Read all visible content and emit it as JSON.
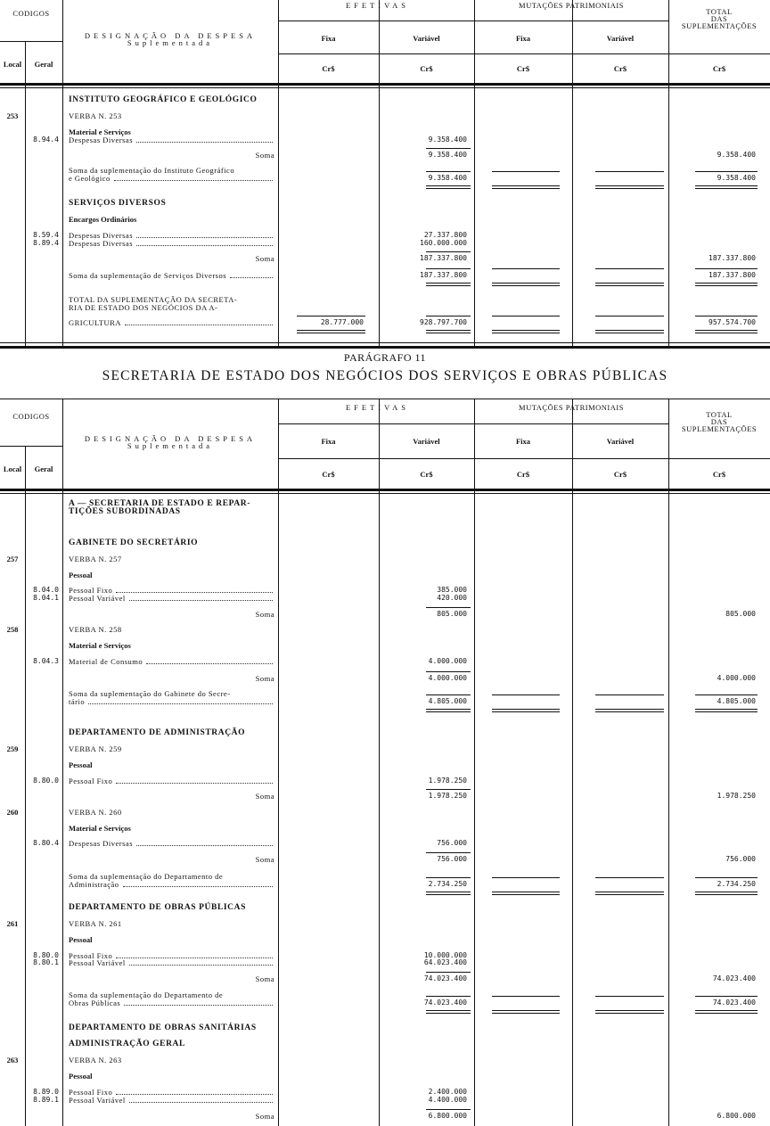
{
  "tables": [
    {
      "header": {
        "codigos": "CODIGOS",
        "local": "Local",
        "geral": "Geral",
        "designacao": [
          "DESIGNAÇÃO DA DESPESA",
          "Suplementada"
        ],
        "efetivas": "EFETIVAS",
        "efetivas_fixa": "Fixa",
        "efetivas_variavel": "Variável",
        "mutacoes": "MUTAÇÕES PATRIMONIAIS",
        "mutacoes_fixa": "Fixa",
        "mutacoes_variavel": "Variável",
        "total": [
          "TOTAL",
          "DAS",
          "SUPLEMENTAÇÕES"
        ],
        "currency": [
          "Cr$",
          "Cr$",
          "Cr$",
          "Cr$",
          "Cr$"
        ]
      },
      "rows": [
        {
          "desc": [
            "INSTITUTO GEOGRÁFICO E GEOLÓGICO"
          ]
        },
        {
          "local": "253",
          "desc": [
            "VERBA N. 253"
          ]
        },
        {
          "desc": [
            "Material e Serviços"
          ]
        },
        {
          "geral": "8.94.4",
          "desc": [
            "Despesas Diversas"
          ],
          "variavel": "9.358.400"
        },
        {
          "desc": [
            "Soma"
          ],
          "variavel": "9.358.400",
          "total": "9.358.400"
        },
        {
          "desc": [
            "Soma da suplementação do Instituto Geográfico",
            "e Geológico"
          ],
          "variavel": "9.358.400",
          "total": "9.358.400"
        },
        {
          "desc": [
            "SERVIÇOS DIVERSOS"
          ]
        },
        {
          "desc": [
            "Encargos Ordinários"
          ]
        },
        {
          "geral": "8.59.4",
          "desc": [
            "Despesas Diversas"
          ],
          "variavel": "27.337.800"
        },
        {
          "geral": "8.89.4",
          "desc": [
            "Despesas Diversas"
          ],
          "variavel": "160.000.000"
        },
        {
          "desc": [
            "Soma"
          ],
          "variavel": "187.337.800",
          "total": "187.337.800"
        },
        {
          "desc": [
            "Soma da suplementação de Serviços Diversos"
          ],
          "variavel": "187.337.800",
          "total": "187.337.800"
        },
        {
          "desc": [
            "TOTAL DA SUPLEMENTAÇÃO DA SECRETA-",
            "RIA DE ESTADO DOS NEGÓCIOS DA A-",
            "GRICULTURA"
          ],
          "fixa": "28.777.000",
          "variavel": "928.797.700",
          "total": "957.574.700"
        }
      ]
    },
    {
      "header": {
        "codigos": "CODIGOS",
        "local": "Local",
        "geral": "Geral",
        "designacao": [
          "DESIGNAÇÃO DA DESPESA",
          "Suplementada"
        ],
        "efetivas": "EFETIVAS",
        "efetivas_fixa": "Fixa",
        "efetivas_variavel": "Variável",
        "mutacoes": "MUTAÇÕES PATRIMONIAIS",
        "mutacoes_fixa": "Fixa",
        "mutacoes_variavel": "Variável",
        "total": [
          "TOTAL",
          "DAS",
          "SUPLEMENTAÇÕES"
        ],
        "currency": [
          "Cr$",
          "Cr$",
          "Cr$",
          "Cr$",
          "Cr$"
        ]
      },
      "rows": [
        {
          "desc": [
            "A — SECRETARIA DE ESTADO E REPAR-",
            "TIÇÕES SUBORDINADAS"
          ]
        },
        {
          "desc": [
            "GABINETE DO SECRETÁRIO"
          ]
        },
        {
          "local": "257",
          "desc": [
            "VERBA N. 257"
          ]
        },
        {
          "desc": [
            "Pessoal"
          ]
        },
        {
          "geral": "8.04.0",
          "desc": [
            "Pessoal Fixo"
          ],
          "variavel": "385.000"
        },
        {
          "geral": "8.04.1",
          "desc": [
            "Pessoal Variável"
          ],
          "variavel": "420.000"
        },
        {
          "desc": [
            "Soma"
          ],
          "variavel": "805.000",
          "total": "805.000"
        },
        {
          "local": "258",
          "desc": [
            "VERBA N. 258"
          ]
        },
        {
          "desc": [
            "Material e Serviços"
          ]
        },
        {
          "geral": "8.04.3",
          "desc": [
            "Material de Consumo"
          ],
          "variavel": "4.000.000"
        },
        {
          "desc": [
            "Soma"
          ],
          "variavel": "4.000.000",
          "total": "4.000.000"
        },
        {
          "desc": [
            "Soma da suplementação do Gabinete do Secre-",
            "tário"
          ],
          "variavel": "4.805.000",
          "total": "4.805.000"
        },
        {
          "desc": [
            "DEPARTAMENTO DE ADMINISTRAÇÃO"
          ]
        },
        {
          "local": "259",
          "desc": [
            "VERBA N. 259"
          ]
        },
        {
          "desc": [
            "Pessoal"
          ]
        },
        {
          "geral": "8.80.0",
          "desc": [
            "Pessoal Fixo"
          ],
          "variavel": "1.978.250"
        },
        {
          "desc": [
            "Soma"
          ],
          "variavel": "1.978.250",
          "total": "1.978.250"
        },
        {
          "local": "260",
          "desc": [
            "VERBA N. 260"
          ]
        },
        {
          "desc": [
            "Material e Serviços"
          ]
        },
        {
          "geral": "8.80.4",
          "desc": [
            "Despesas Diversas"
          ],
          "variavel": "756.000"
        },
        {
          "desc": [
            "Soma"
          ],
          "variavel": "756.000",
          "total": "756.000"
        },
        {
          "desc": [
            "Soma da suplementação do Departamento de",
            "Administração"
          ],
          "variavel": "2.734.250",
          "total": "2.734.250"
        },
        {
          "desc": [
            "DEPARTAMENTO DE OBRAS PÚBLICAS"
          ]
        },
        {
          "local": "261",
          "desc": [
            "VERBA N. 261"
          ]
        },
        {
          "desc": [
            "Pessoal"
          ]
        },
        {
          "geral": "8.80.0",
          "desc": [
            "Pessoal Fixo"
          ],
          "variavel": "10.000.000"
        },
        {
          "geral": "8.80.1",
          "desc": [
            "Pessoal Variável"
          ],
          "variavel": "64.023.400"
        },
        {
          "desc": [
            "Soma"
          ],
          "variavel": "74.023.400",
          "total": "74.023.400"
        },
        {
          "desc": [
            "Soma da suplementação do Departamento de",
            "Obras Públicas"
          ],
          "variavel": "74.023.400",
          "total": "74.023.400"
        },
        {
          "desc": [
            "DEPARTAMENTO DE OBRAS SANITÁRIAS"
          ]
        },
        {
          "desc": [
            "ADMINISTRAÇÃO GERAL"
          ]
        },
        {
          "local": "263",
          "desc": [
            "VERBA N. 263"
          ]
        },
        {
          "desc": [
            "Pessoal"
          ]
        },
        {
          "geral": "8.89.0",
          "desc": [
            "Pessoal Fixo"
          ],
          "variavel": "2.400.000"
        },
        {
          "geral": "8.89.1",
          "desc": [
            "Pessoal Variável"
          ],
          "variavel": "4.400.000"
        },
        {
          "desc": [
            "Soma"
          ],
          "variavel": "6.800.000",
          "total": "6.800.000"
        }
      ]
    }
  ],
  "paragrafo": "PARÁGRAFO 11",
  "secretaria": "SECRETARIA DE ESTADO DOS NEGÓCIOS DOS SERVIÇOS E OBRAS PÚBLICAS"
}
